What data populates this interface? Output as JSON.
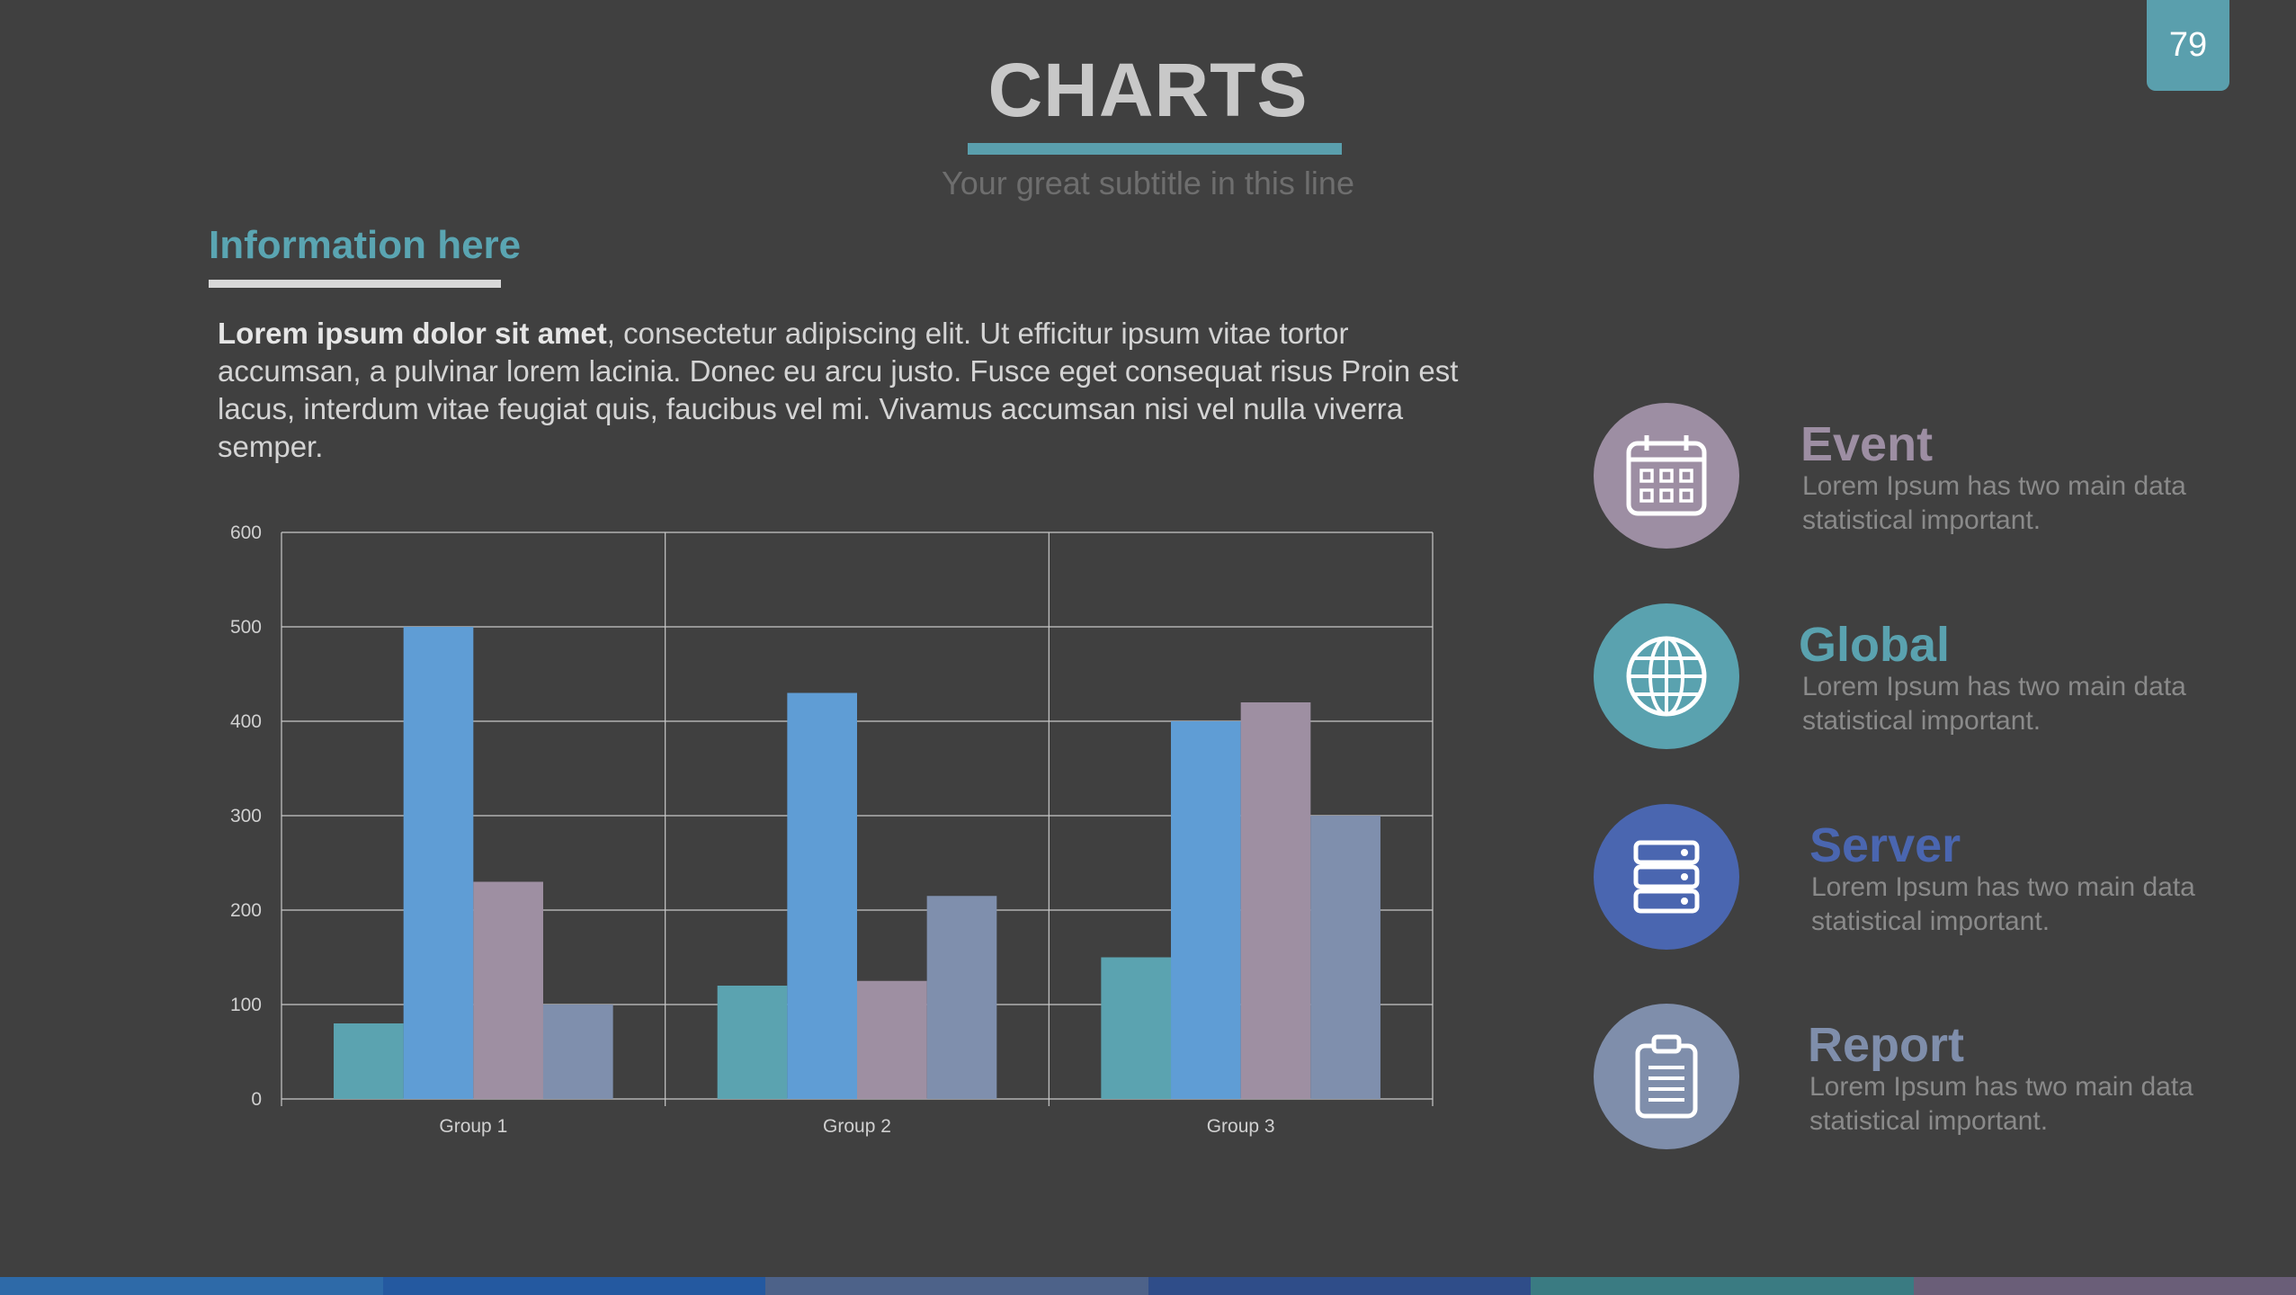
{
  "page_number": "79",
  "title": "CHARTS",
  "subtitle": "Your great subtitle in this line",
  "info": {
    "heading": "Information here",
    "body_bold": "Lorem ipsum dolor sit amet",
    "body_rest": ", consectetur adipiscing elit. Ut efficitur ipsum vitae tortor accumsan, a pulvinar lorem lacinia. Donec eu arcu justo. Fusce eget consequat risus Proin est lacus, interdum vitae feugiat quis, faucibus vel mi.  Vivamus accumsan nisi vel nulla viverra semper."
  },
  "colors": {
    "accent": "#5a9fad",
    "series": [
      "#5ba3b0",
      "#5f9dd5",
      "#9e8fa2",
      "#7f8fad"
    ]
  },
  "chart_data": {
    "type": "bar",
    "categories": [
      "Group 1",
      "Group 2",
      "Group 3"
    ],
    "series": [
      {
        "values": [
          80,
          120,
          150
        ]
      },
      {
        "values": [
          500,
          430,
          400
        ]
      },
      {
        "values": [
          230,
          125,
          420
        ]
      },
      {
        "values": [
          100,
          215,
          300
        ]
      }
    ],
    "ylim": [
      0,
      600
    ],
    "yticks": [
      0,
      100,
      200,
      300,
      400,
      500,
      600
    ],
    "grid": true
  },
  "features": [
    {
      "title": "Event",
      "desc": "Lorem Ipsum has two main data statistical important.",
      "icon": "calendar-icon",
      "color": "#9d8ea3"
    },
    {
      "title": "Global",
      "desc": "Lorem Ipsum has two main data statistical important.",
      "icon": "globe-icon",
      "color": "#5aa2af"
    },
    {
      "title": "Server",
      "desc": "Lorem Ipsum has two main data statistical important.",
      "icon": "server-icon",
      "color": "#4a66b0"
    },
    {
      "title": "Report",
      "desc": "Lorem Ipsum has two main data statistical important.",
      "icon": "clipboard-icon",
      "color": "#7f8eab"
    }
  ],
  "bottom_bar_colors": [
    "#2e6aa8",
    "#2459a0",
    "#4d6289",
    "#2f4d89",
    "#3a7b82",
    "#6a5e78"
  ]
}
